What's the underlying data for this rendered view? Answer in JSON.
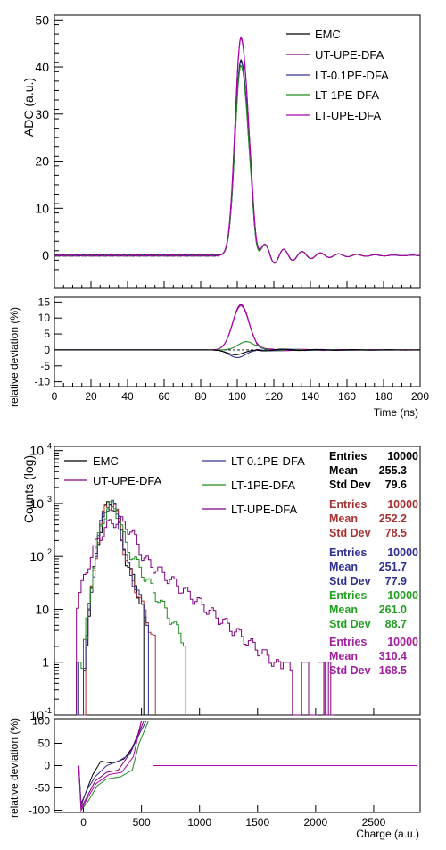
{
  "chart_data": [
    {
      "type": "line",
      "panel": "upper-waveform",
      "xlabel": "",
      "ylabel": "ADC (a.u.)",
      "xlim": [
        0,
        200
      ],
      "ylim": [
        -7,
        51
      ],
      "y_ticks": [
        0,
        10,
        20,
        30,
        40,
        50
      ],
      "x_ticks": [
        0,
        20,
        40,
        60,
        80,
        100,
        120,
        140,
        160,
        180,
        200
      ],
      "legend_position": "top-right",
      "series": [
        {
          "name": "EMC",
          "color": "#000000",
          "peak": 41.5,
          "peak_x": 102
        },
        {
          "name": "UT-UPE-DFA",
          "color": "#800080",
          "peak": 46.3,
          "peak_x": 102
        },
        {
          "name": "LT-0.1PE-DFA",
          "color": "#303090",
          "peak": 41.2,
          "peak_x": 102
        },
        {
          "name": "LT-1PE-DFA",
          "color": "#228b22",
          "peak": 40.3,
          "peak_x": 102
        },
        {
          "name": "LT-UPE-DFA",
          "color": "#b000b0",
          "peak": 46.1,
          "peak_x": 102
        }
      ]
    },
    {
      "type": "line",
      "panel": "upper-deviation",
      "xlabel": "Time (ns)",
      "ylabel": "relative deviation (%)",
      "xlim": [
        0,
        200
      ],
      "ylim": [
        -11.5,
        16.5
      ],
      "y_ticks": [
        -10,
        -5,
        0,
        5,
        10,
        15
      ],
      "x_ticks": [
        0,
        20,
        40,
        60,
        80,
        100,
        120,
        140,
        160,
        180,
        200
      ],
      "x_tick_labels": [
        "0",
        "20",
        "40",
        "60",
        "80",
        "100",
        "120",
        "140",
        "160",
        "180",
        "200"
      ],
      "series": [
        {
          "name": "UT-UPE-DFA",
          "color": "#800080",
          "peak": 14.2,
          "peak_x": 102
        },
        {
          "name": "LT-UPE-DFA",
          "color": "#b000b0",
          "peak": 13.8,
          "peak_x": 102
        },
        {
          "name": "LT-1PE-DFA",
          "color": "#228b22",
          "peak": 2.6,
          "peak_x": 105
        },
        {
          "name": "LT-0.1PE-DFA",
          "color": "#303090",
          "peak": -2.4,
          "peak_x": 100
        },
        {
          "name": "EMC",
          "color": "#000000",
          "peak": -1.5,
          "peak_x": 99
        }
      ]
    },
    {
      "type": "bar",
      "panel": "lower-histogram",
      "xlabel": "",
      "ylabel": "Counts (log)",
      "xlim": [
        -250,
        2900
      ],
      "ylim": [
        0.1,
        12000
      ],
      "log_y": true,
      "y_ticks": [
        0.1,
        1,
        10,
        100,
        1000,
        10000
      ],
      "y_tick_labels": [
        "10^-1",
        "1",
        "10",
        "10^2",
        "10^3",
        "10^4"
      ],
      "legend": [
        {
          "name": "EMC",
          "color": "#000000"
        },
        {
          "name": "UT-UPE-DFA",
          "color": "#800080"
        },
        {
          "name": "LT-0.1PE-DFA",
          "color": "#303090"
        },
        {
          "name": "LT-1PE-DFA",
          "color": "#228b22"
        },
        {
          "name": "LT-UPE-DFA",
          "color": "#800080"
        }
      ],
      "stats_labels": {
        "entries": "Entries",
        "mean": "Mean",
        "std": "Std Dev"
      },
      "stats": [
        {
          "color": "#000000",
          "entries": "10000",
          "mean": "255.3",
          "std": "79.6"
        },
        {
          "color": "#a83232",
          "entries": "10000",
          "mean": "252.2",
          "std": "78.5"
        },
        {
          "color": "#303090",
          "entries": "10000",
          "mean": "251.7",
          "std": "77.9"
        },
        {
          "color": "#22a022",
          "entries": "10000",
          "mean": "261.0",
          "std": "88.7"
        },
        {
          "color": "#a020a0",
          "entries": "10000",
          "mean": "310.4",
          "std": "168.5"
        }
      ],
      "series": [
        {
          "name": "EMC",
          "color": "#000000",
          "mean": 255.3,
          "std": 79.6,
          "entries": 10000,
          "tail_end": 520
        },
        {
          "name": "UT-UPE-DFA",
          "color": "#a83232",
          "mean": 252.2,
          "std": 78.5,
          "entries": 10000,
          "tail_end": 620
        },
        {
          "name": "LT-0.1PE-DFA",
          "color": "#303090",
          "mean": 251.7,
          "std": 77.9,
          "entries": 10000,
          "tail_end": 560
        },
        {
          "name": "LT-1PE-DFA",
          "color": "#228b22",
          "mean": 261.0,
          "std": 88.7,
          "entries": 10000,
          "tail_end": 880
        },
        {
          "name": "LT-UPE-DFA",
          "color": "#800080",
          "mean": 310.4,
          "std": 168.5,
          "entries": 10000,
          "tail_end": 2150
        }
      ]
    },
    {
      "type": "line",
      "panel": "lower-deviation",
      "xlabel": "Charge (a.u.)",
      "ylabel": "relative deviation (%)",
      "xlim": [
        -250,
        2900
      ],
      "ylim": [
        -105,
        105
      ],
      "y_ticks": [
        -100,
        -50,
        0,
        50,
        100
      ],
      "x_ticks": [
        0,
        500,
        1000,
        1500,
        2000,
        2500
      ],
      "x_tick_labels": [
        "0",
        "500",
        "1000",
        "1500",
        "2000",
        "2500"
      ],
      "series": [
        {
          "name": "EMC",
          "color": "#000000"
        },
        {
          "name": "UT-UPE-DFA",
          "color": "#800080"
        },
        {
          "name": "LT-0.1PE-DFA",
          "color": "#303090"
        },
        {
          "name": "LT-1PE-DFA",
          "color": "#228b22"
        },
        {
          "name": "LT-UPE-DFA",
          "color": "#b000b0"
        }
      ]
    }
  ]
}
